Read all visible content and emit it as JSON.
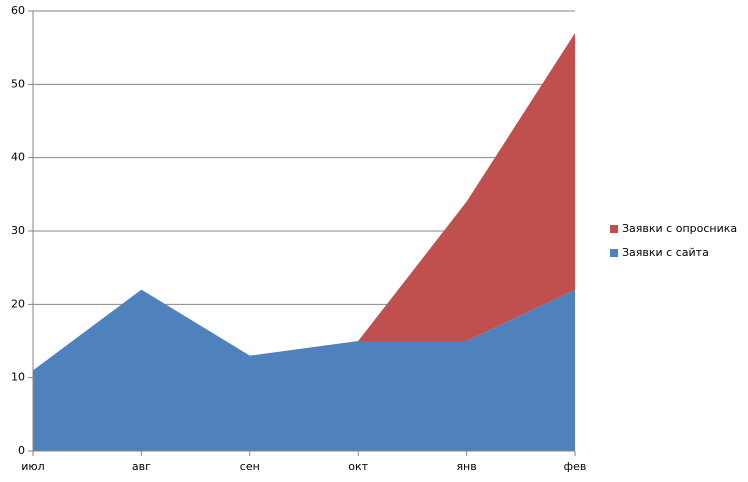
{
  "chart_data": {
    "type": "stacked-area",
    "categories": [
      "июл",
      "авг",
      "сен",
      "окт",
      "янв",
      "фев"
    ],
    "series": [
      {
        "name": "Заявки с сайта",
        "color": "#4f81bd",
        "values": [
          11,
          22,
          13,
          15,
          15,
          22
        ]
      },
      {
        "name": "Заявки с опросника",
        "color": "#c0504d",
        "values": [
          0,
          0,
          0,
          0,
          19,
          35
        ]
      }
    ],
    "ylim": [
      0,
      60
    ],
    "yticks": [
      0,
      10,
      20,
      30,
      40,
      50,
      60
    ],
    "grid": true,
    "legend": "right"
  }
}
